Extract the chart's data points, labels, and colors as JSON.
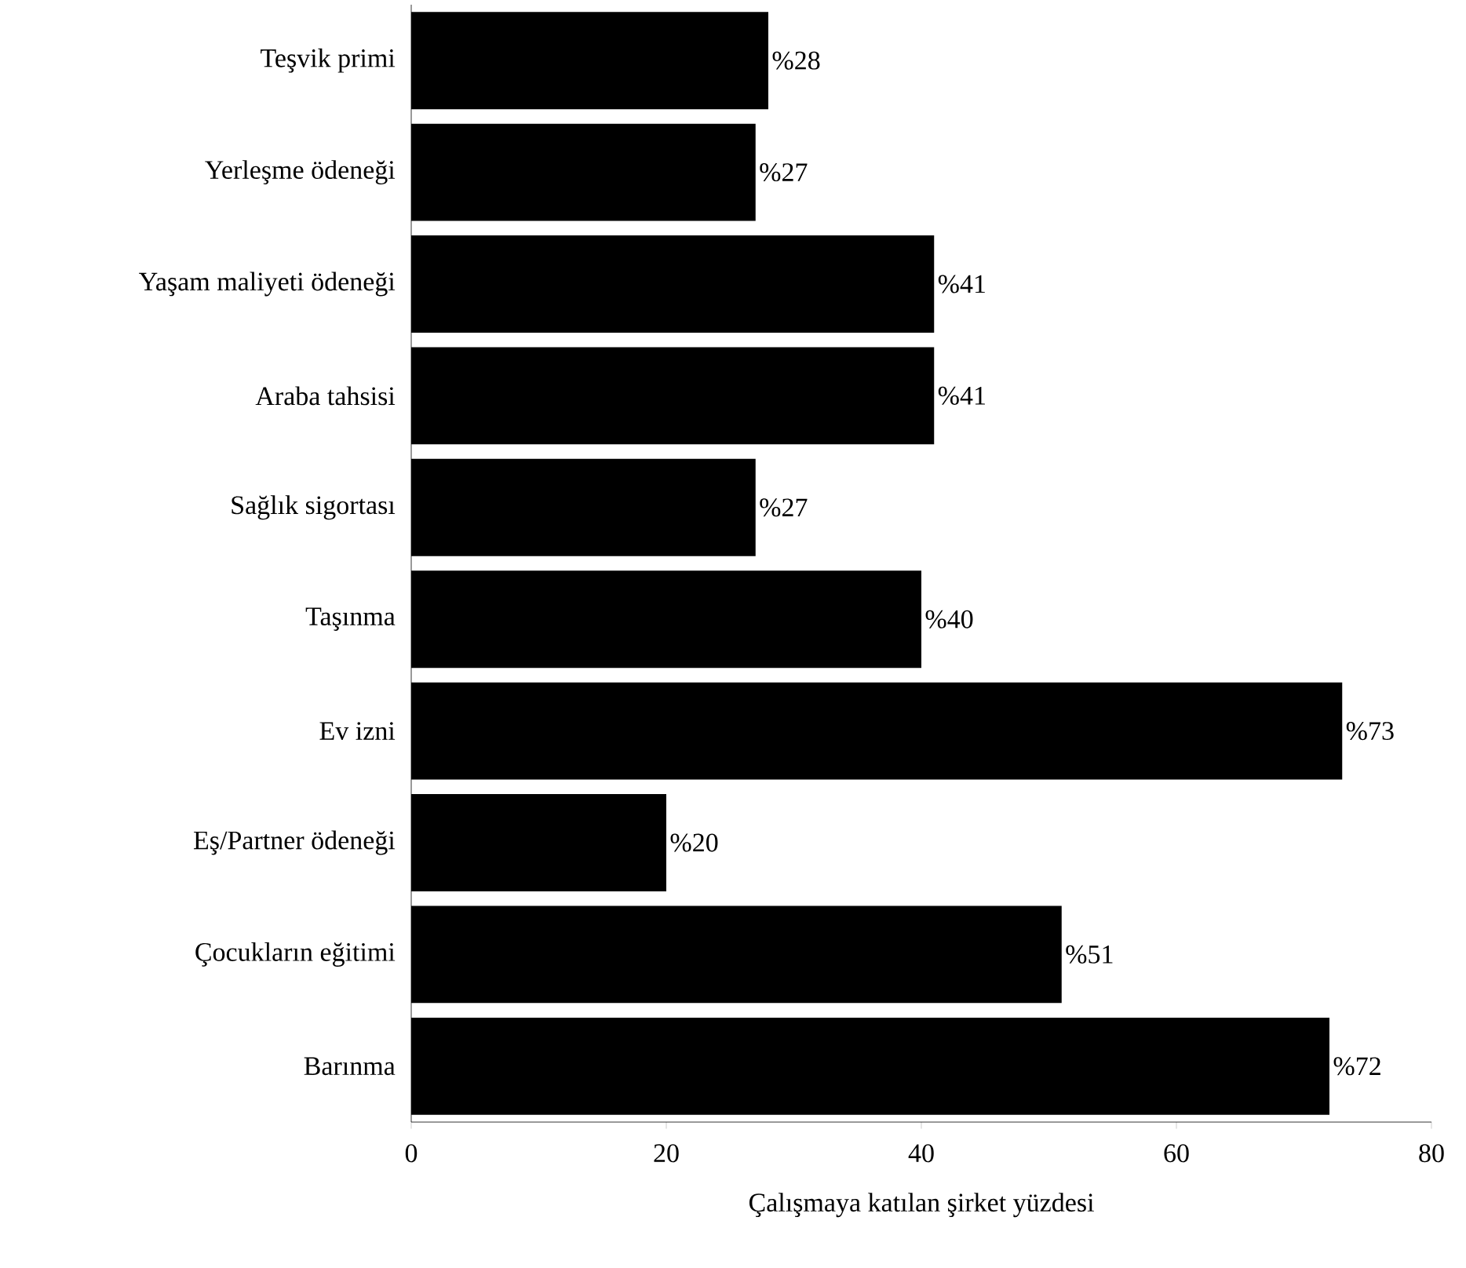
{
  "chart_data": {
    "type": "bar",
    "orientation": "horizontal",
    "categories": [
      "Teşvik primi",
      "Yerleşme ödeneği",
      "Yaşam maliyeti ödeneği",
      "Araba tahsisi",
      "Sağlık sigortası",
      "Taşınma",
      "Ev izni",
      "Eş/Partner ödeneği",
      "Çocukların eğitimi",
      "Barınma"
    ],
    "values": [
      28,
      27,
      41,
      41,
      27,
      40,
      73,
      20,
      51,
      72
    ],
    "value_labels": [
      "%28",
      "%27",
      "%41",
      "%41",
      "%27",
      "%40",
      "%73",
      "%20",
      "%51",
      "%72"
    ],
    "color": "#000000",
    "xlim": [
      0,
      80
    ],
    "xticks": [
      0,
      20,
      40,
      60,
      80
    ],
    "xlabel": "Çalışmaya katılan şirket yüzdesi"
  }
}
